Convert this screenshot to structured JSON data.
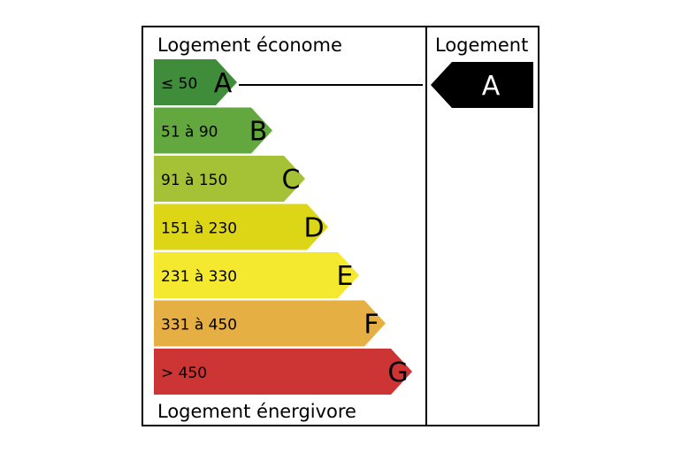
{
  "header": {
    "top_label": "Logement économe",
    "bottom_label": "Logement énergivore",
    "column_label": "Logement"
  },
  "classes": [
    {
      "letter": "A",
      "range": "≤ 50",
      "color": "#3f8c3a"
    },
    {
      "letter": "B",
      "range": "51 à 90",
      "color": "#62a83e"
    },
    {
      "letter": "C",
      "range": "91 à 150",
      "color": "#a5c236"
    },
    {
      "letter": "D",
      "range": "151 à 230",
      "color": "#dcd616"
    },
    {
      "letter": "E",
      "range": "231 à 330",
      "color": "#f4e92f"
    },
    {
      "letter": "F",
      "range": "331 à 450",
      "color": "#e6af43"
    },
    {
      "letter": "G",
      "range": "> 450",
      "color": "#cd3434"
    }
  ],
  "result": {
    "letter": "A",
    "color": "#000000"
  }
}
